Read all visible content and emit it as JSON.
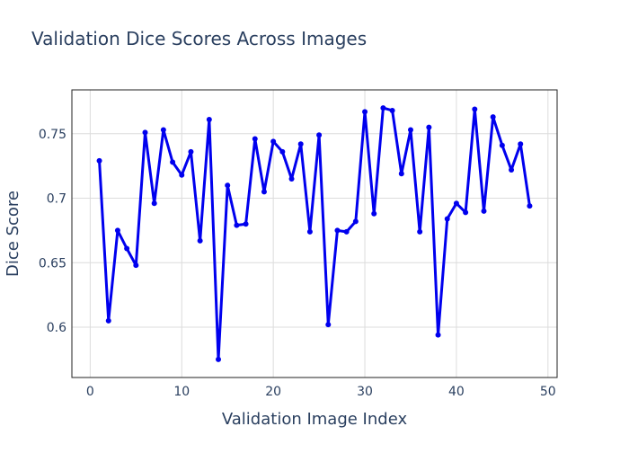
{
  "chart_data": {
    "type": "line",
    "title": "Validation Dice Scores Across Images",
    "xlabel": "Validation Image Index",
    "ylabel": "Dice Score",
    "xlim": [
      -2,
      51
    ],
    "ylim": [
      0.561,
      0.784
    ],
    "x_ticks": [
      0,
      10,
      20,
      30,
      40,
      50
    ],
    "x_tick_labels": [
      "0",
      "10",
      "20",
      "30",
      "40",
      "50"
    ],
    "y_ticks": [
      0.6,
      0.65,
      0.7,
      0.75
    ],
    "y_tick_labels": [
      "0.6",
      "0.65",
      "0.7",
      "0.75"
    ],
    "grid": true,
    "legend": "none",
    "line_color": "#0000ee",
    "series": [
      {
        "x": [
          1,
          2,
          3,
          4,
          5,
          6,
          7,
          8,
          9,
          10,
          11,
          12,
          13,
          14,
          15,
          16,
          17,
          18,
          19,
          20,
          21,
          22,
          23,
          24,
          25,
          26,
          27,
          28,
          29,
          30,
          31,
          32,
          33,
          34,
          35,
          36,
          37,
          38,
          39,
          40,
          41,
          42,
          43,
          44,
          45,
          46,
          47,
          48
        ],
        "y": [
          0.729,
          0.605,
          0.675,
          0.661,
          0.648,
          0.751,
          0.696,
          0.753,
          0.728,
          0.718,
          0.736,
          0.667,
          0.761,
          0.575,
          0.71,
          0.679,
          0.68,
          0.746,
          0.705,
          0.744,
          0.736,
          0.715,
          0.742,
          0.674,
          0.749,
          0.602,
          0.675,
          0.674,
          0.682,
          0.767,
          0.688,
          0.77,
          0.768,
          0.719,
          0.753,
          0.674,
          0.755,
          0.594,
          0.684,
          0.696,
          0.689,
          0.769,
          0.69,
          0.763,
          0.741,
          0.722,
          0.742,
          0.694
        ]
      }
    ]
  }
}
